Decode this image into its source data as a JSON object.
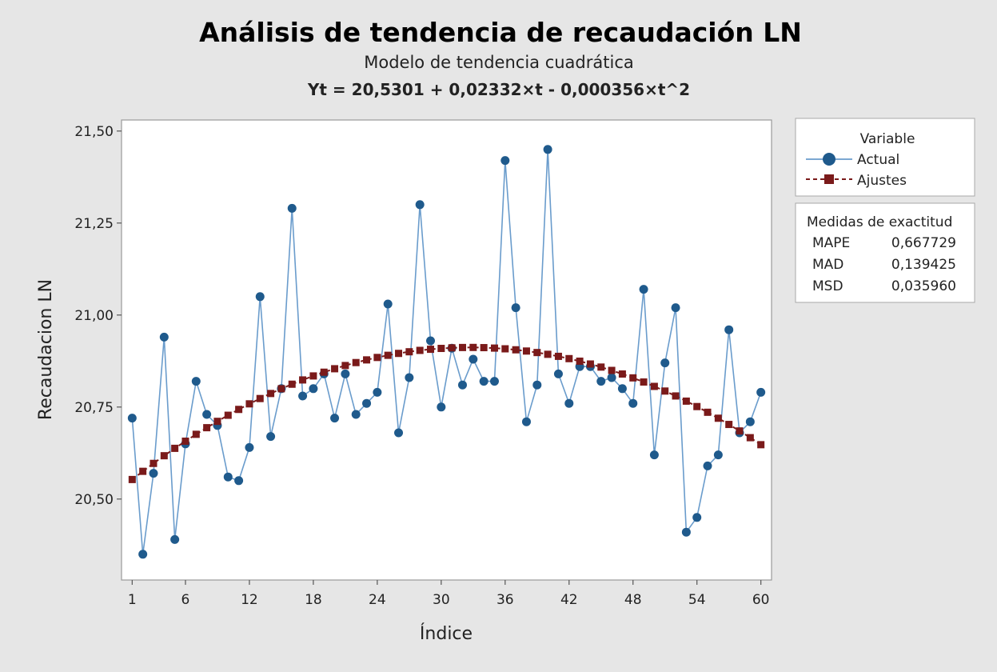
{
  "chart_data": {
    "type": "line",
    "title": "Análisis de tendencia de recaudación LN",
    "subtitle": "Modelo de tendencia cuadrática",
    "equation": "Yt = 20,5301 + 0,02332×t - 0,000356×t^2",
    "xlabel": "Índice",
    "ylabel": "Recaudacion LN",
    "xlim": [
      0,
      61
    ],
    "ylim": [
      20.28,
      21.53
    ],
    "x_ticks": [
      1,
      6,
      12,
      18,
      24,
      30,
      36,
      42,
      48,
      54,
      60
    ],
    "x_tick_labels": [
      "1",
      "6",
      "12",
      "18",
      "24",
      "30",
      "36",
      "42",
      "48",
      "54",
      "60"
    ],
    "y_ticks": [
      20.5,
      20.75,
      21.0,
      21.25,
      21.5
    ],
    "y_tick_labels": [
      "20,50",
      "20,75",
      "21,00",
      "21,25",
      "21,50"
    ],
    "grid": false,
    "legend": {
      "position": "top-right",
      "title": "Variable",
      "entries": [
        {
          "label": "Actual",
          "color": "#1f5a8c",
          "line_color": "#6a9ccc"
        },
        {
          "label": "Ajustes",
          "color": "#7a1a1a"
        }
      ]
    },
    "accuracy": {
      "title": "Medidas de exactitud",
      "rows": [
        {
          "name": "MAPE",
          "value": "0,667729"
        },
        {
          "name": "MAD",
          "value": "0,139425"
        },
        {
          "name": "MSD",
          "value": "0,035960"
        }
      ]
    },
    "fit": {
      "a": 20.5301,
      "b": 0.02332,
      "c": -0.000356
    },
    "series": [
      {
        "name": "Actual",
        "x": [
          1,
          2,
          3,
          4,
          5,
          6,
          7,
          8,
          9,
          10,
          11,
          12,
          13,
          14,
          15,
          16,
          17,
          18,
          19,
          20,
          21,
          22,
          23,
          24,
          25,
          26,
          27,
          28,
          29,
          30,
          31,
          32,
          33,
          34,
          35,
          36,
          37,
          38,
          39,
          40,
          41,
          42,
          43,
          44,
          45,
          46,
          47,
          48,
          49,
          50,
          51,
          52,
          53,
          54,
          55,
          56,
          57,
          58,
          59,
          60
        ],
        "values": [
          20.72,
          20.35,
          20.57,
          20.94,
          20.39,
          20.65,
          20.82,
          20.73,
          20.7,
          20.56,
          20.55,
          20.64,
          21.05,
          20.67,
          20.8,
          21.29,
          20.78,
          20.8,
          20.84,
          20.72,
          20.84,
          20.73,
          20.76,
          20.79,
          21.03,
          20.68,
          20.83,
          21.3,
          20.93,
          20.75,
          20.91,
          20.81,
          20.88,
          20.82,
          20.82,
          21.42,
          21.02,
          20.71,
          20.81,
          21.45,
          20.84,
          20.76,
          20.86,
          20.86,
          20.82,
          20.83,
          20.8,
          20.76,
          21.07,
          20.62,
          20.87,
          21.02,
          20.41,
          20.45,
          20.59,
          20.62,
          20.96,
          20.68,
          20.71,
          20.79
        ]
      }
    ]
  }
}
